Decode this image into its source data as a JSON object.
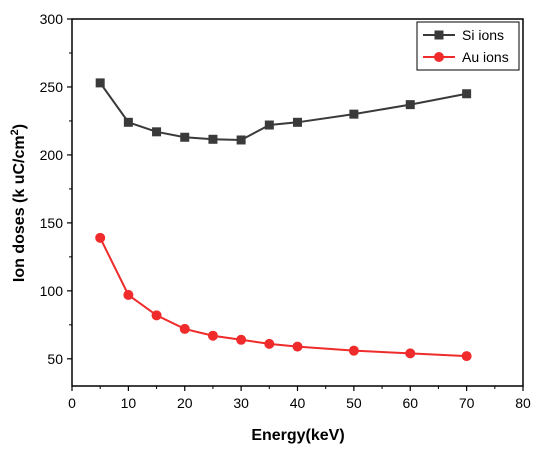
{
  "chart_data": {
    "type": "line",
    "xlabel": "Energy(keV)",
    "ylabel_main": "Ion doses (k uC/cm",
    "ylabel_sup": "2",
    "ylabel_tail": ")",
    "xlim": [
      0,
      80
    ],
    "ylim": [
      30,
      300
    ],
    "xticks": [
      0,
      10,
      20,
      30,
      40,
      50,
      60,
      70,
      80
    ],
    "yticks": [
      50,
      100,
      150,
      200,
      250,
      300
    ],
    "grid": false,
    "legend_position": "top-right",
    "series": [
      {
        "name": "Si ions",
        "color": "#3a3a3a",
        "marker": "square",
        "x": [
          5,
          10,
          15,
          20,
          25,
          30,
          35,
          40,
          50,
          60,
          70
        ],
        "y": [
          253,
          224,
          217,
          213,
          211.5,
          211,
          222,
          224,
          230,
          237,
          245
        ]
      },
      {
        "name": "Au ions",
        "color": "#ef2b2b",
        "marker": "circle",
        "x": [
          5,
          10,
          15,
          20,
          25,
          30,
          35,
          40,
          50,
          60,
          70
        ],
        "y": [
          139,
          97,
          82,
          72,
          67,
          64,
          61,
          59,
          56,
          54,
          52
        ]
      }
    ]
  }
}
